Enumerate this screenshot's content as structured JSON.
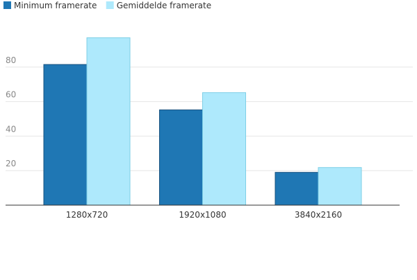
{
  "chart_data": {
    "type": "bar",
    "categories": [
      "1280x720",
      "1920x1080",
      "3840x2160"
    ],
    "series": [
      {
        "name": "Minimum framerate",
        "color": "#1f77b4",
        "values": [
          81.5,
          55.2,
          19.0
        ]
      },
      {
        "name": "Gemiddelde framerate",
        "color": "#aee9fc",
        "values": [
          97.0,
          65.2,
          21.8
        ]
      }
    ],
    "yticks": [
      20,
      40,
      60,
      80
    ],
    "ylim": [
      0,
      110
    ],
    "grid": true,
    "legend": "top-left",
    "title": "",
    "xlabel": "",
    "ylabel": ""
  }
}
